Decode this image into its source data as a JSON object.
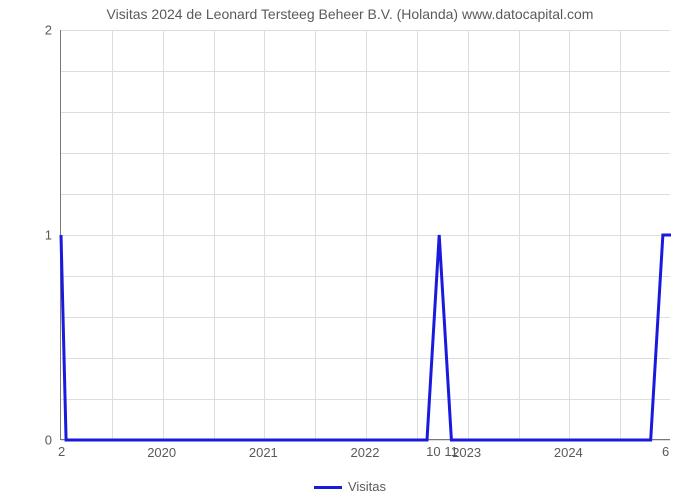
{
  "chart": {
    "type": "line",
    "title": "Visitas 2024 de Leonard Tersteeg Beheer B.V. (Holanda) www.datocapital.com",
    "title_fontsize": 14,
    "title_color": "#5a5a5a",
    "background_color": "#ffffff",
    "grid_color": "#dddddd",
    "axis_color": "#777777",
    "line_color": "#1a1adf",
    "line_width": 3,
    "ylim": [
      0,
      2
    ],
    "xlim": [
      2019,
      2025
    ],
    "y_major_ticks": [
      0,
      1,
      2
    ],
    "y_minor_ticks": [
      0.2,
      0.4,
      0.6,
      0.8,
      1.2,
      1.4,
      1.6,
      1.8
    ],
    "x_major_ticks": [
      2020,
      2021,
      2022,
      2023,
      2024
    ],
    "x_minor_ticks": [
      2019.5,
      2020.5,
      2021.5,
      2022.5,
      2023.5,
      2024.5
    ],
    "x_first_label": "2",
    "x_mid_label_a": "10",
    "x_mid_label_b": "11",
    "x_last_label": "6",
    "data_x": [
      2019.0,
      2019.05,
      2022.6,
      2022.72,
      2022.84,
      2022.88,
      2024.8,
      2024.92,
      2025.0
    ],
    "data_y": [
      1.0,
      0.0,
      0.0,
      1.0,
      0.0,
      0.0,
      0.0,
      1.0,
      1.0
    ],
    "legend_label": "Visitas",
    "label_fontsize": 13,
    "label_color": "#5a5a5a"
  }
}
